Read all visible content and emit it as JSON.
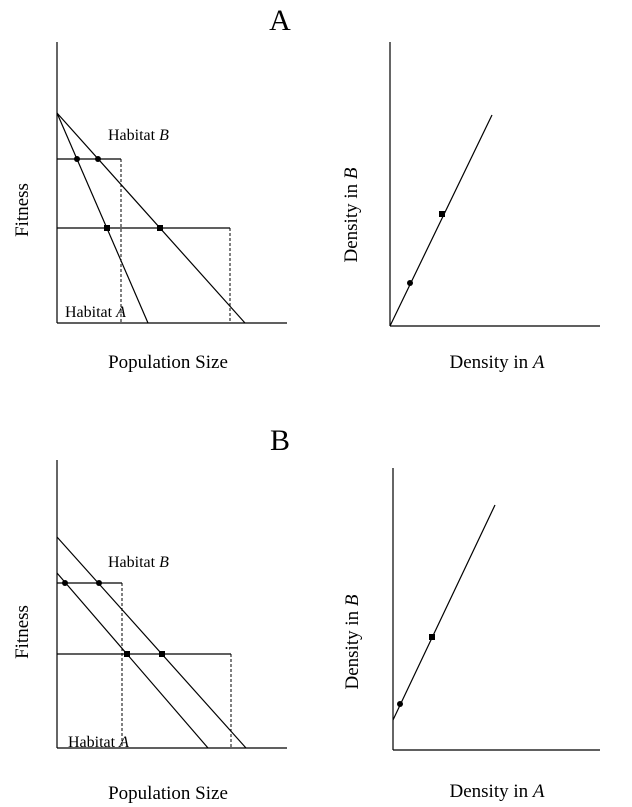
{
  "panels": [
    {
      "label": "A",
      "left": {
        "y_label": "Fitness",
        "x_label": "Population Size",
        "habitat_b": {
          "text": "Habitat ",
          "italic": "B"
        },
        "habitat_a": {
          "text": "Habitat ",
          "italic": "A"
        }
      },
      "right": {
        "y_label": {
          "text": "Density in ",
          "italic": "B"
        },
        "x_label": {
          "text": "Density in ",
          "italic": "A"
        }
      }
    },
    {
      "label": "B",
      "left": {
        "y_label": "Fitness",
        "x_label": "Population Size",
        "habitat_b": {
          "text": "Habitat ",
          "italic": "B"
        },
        "habitat_a": {
          "text": "Habitat ",
          "italic": "A"
        }
      },
      "right": {
        "y_label": {
          "text": "Density in ",
          "italic": "B"
        },
        "x_label": {
          "text": "Density in ",
          "italic": "A"
        }
      }
    }
  ]
}
